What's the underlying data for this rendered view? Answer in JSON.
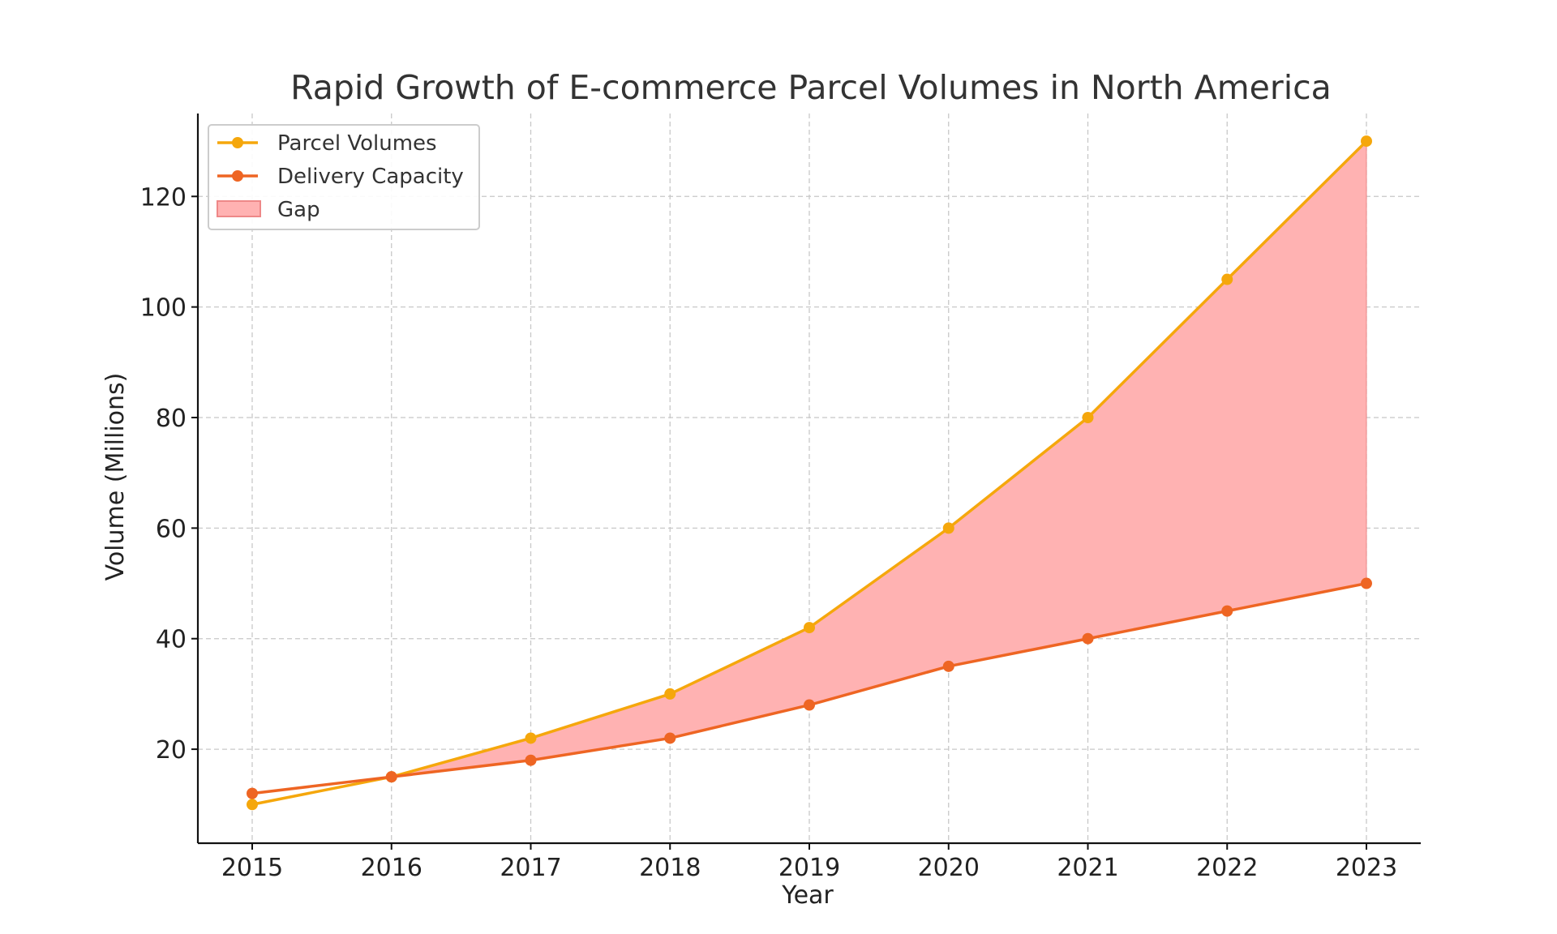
{
  "chart_data": {
    "type": "line",
    "title": "Rapid Growth of E-commerce Parcel Volumes in North America",
    "xlabel": "Year",
    "ylabel": "Volume (Millions)",
    "x": [
      "2015",
      "2016",
      "2017",
      "2018",
      "2019",
      "2020",
      "2021",
      "2022",
      "2023"
    ],
    "yticks": [
      20,
      40,
      60,
      80,
      100,
      120
    ],
    "ylim": [
      3,
      135
    ],
    "grid": true,
    "legend_position": "top-left",
    "series": [
      {
        "name": "Parcel Volumes",
        "color": "#f5a70c",
        "values": [
          10,
          15,
          22,
          30,
          42,
          60,
          80,
          105,
          130
        ]
      },
      {
        "name": "Delivery Capacity",
        "color": "#ee6523",
        "values": [
          12,
          15,
          18,
          22,
          28,
          35,
          40,
          45,
          50
        ]
      }
    ],
    "fill_between": {
      "name": "Gap",
      "color": "#ffb2b2",
      "edge_color": "#ee8888"
    }
  }
}
